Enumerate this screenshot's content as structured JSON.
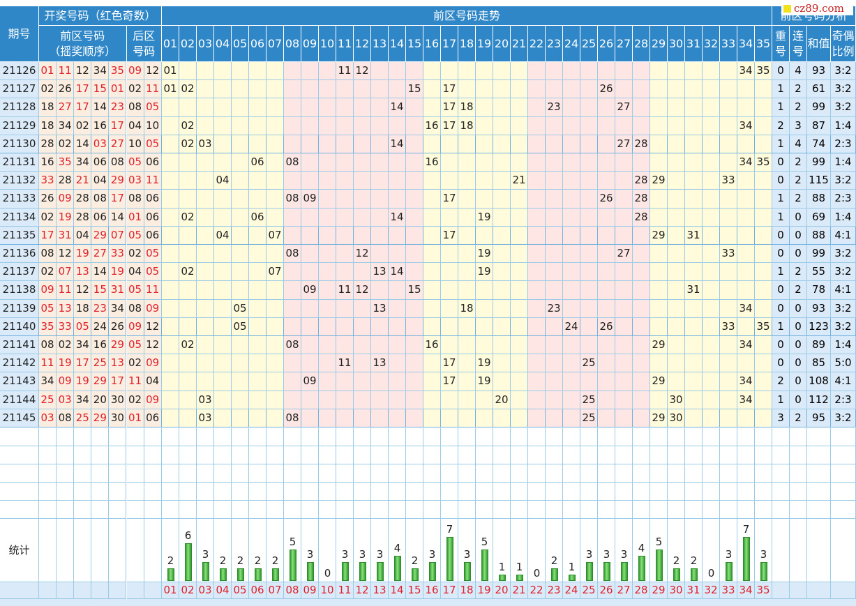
{
  "headers": {
    "period": "期号",
    "draw_group": "开奖号码（红色奇数）",
    "front_line1": "前区号码",
    "front_line2": "（摇奖顺序）",
    "back_line1": "后区",
    "back_line2": "号码",
    "trend": "前区号码走势",
    "analysis": "前区号码分析",
    "repeat_line1": "重",
    "repeat_line2": "号",
    "consec_line1": "连",
    "consec_line2": "号",
    "sum": "和值",
    "ratio_line1": "奇偶",
    "ratio_line2": "比例",
    "stats": "统计"
  },
  "number_labels": [
    "01",
    "02",
    "03",
    "04",
    "05",
    "06",
    "07",
    "08",
    "09",
    "10",
    "11",
    "12",
    "13",
    "14",
    "15",
    "16",
    "17",
    "18",
    "19",
    "20",
    "21",
    "22",
    "23",
    "24",
    "25",
    "26",
    "27",
    "28",
    "29",
    "30",
    "31",
    "32",
    "33",
    "34",
    "35"
  ],
  "watermark": "cz89.com",
  "rows": [
    {
      "period": "21126",
      "front": [
        "01",
        "11",
        "12",
        "34",
        "35"
      ],
      "back": [
        "09",
        "12"
      ],
      "repeat": "0",
      "consec": "4",
      "sum": "93",
      "ratio": "3:2"
    },
    {
      "period": "21127",
      "front": [
        "02",
        "26",
        "17",
        "15",
        "01"
      ],
      "back": [
        "02",
        "11"
      ],
      "repeat": "1",
      "consec": "2",
      "sum": "61",
      "ratio": "3:2"
    },
    {
      "period": "21128",
      "front": [
        "18",
        "27",
        "17",
        "14",
        "23"
      ],
      "back": [
        "08",
        "05"
      ],
      "repeat": "1",
      "consec": "2",
      "sum": "99",
      "ratio": "3:2"
    },
    {
      "period": "21129",
      "front": [
        "18",
        "34",
        "02",
        "16",
        "17"
      ],
      "back": [
        "04",
        "10"
      ],
      "repeat": "2",
      "consec": "3",
      "sum": "87",
      "ratio": "1:4"
    },
    {
      "period": "21130",
      "front": [
        "28",
        "02",
        "14",
        "03",
        "27"
      ],
      "back": [
        "10",
        "05"
      ],
      "repeat": "1",
      "consec": "4",
      "sum": "74",
      "ratio": "2:3"
    },
    {
      "period": "21131",
      "front": [
        "16",
        "35",
        "34",
        "06",
        "08"
      ],
      "back": [
        "05",
        "06"
      ],
      "repeat": "0",
      "consec": "2",
      "sum": "99",
      "ratio": "1:4"
    },
    {
      "period": "21132",
      "front": [
        "33",
        "28",
        "21",
        "04",
        "29"
      ],
      "back": [
        "03",
        "11"
      ],
      "repeat": "0",
      "consec": "2",
      "sum": "115",
      "ratio": "3:2"
    },
    {
      "period": "21133",
      "front": [
        "26",
        "09",
        "28",
        "08",
        "17"
      ],
      "back": [
        "08",
        "06"
      ],
      "repeat": "1",
      "consec": "2",
      "sum": "88",
      "ratio": "2:3"
    },
    {
      "period": "21134",
      "front": [
        "02",
        "19",
        "28",
        "06",
        "14"
      ],
      "back": [
        "01",
        "06"
      ],
      "repeat": "1",
      "consec": "0",
      "sum": "69",
      "ratio": "1:4"
    },
    {
      "period": "21135",
      "front": [
        "17",
        "31",
        "04",
        "29",
        "07"
      ],
      "back": [
        "05",
        "06"
      ],
      "repeat": "0",
      "consec": "0",
      "sum": "88",
      "ratio": "4:1"
    },
    {
      "period": "21136",
      "front": [
        "08",
        "12",
        "19",
        "27",
        "33"
      ],
      "back": [
        "02",
        "05"
      ],
      "repeat": "0",
      "consec": "0",
      "sum": "99",
      "ratio": "3:2"
    },
    {
      "period": "21137",
      "front": [
        "02",
        "07",
        "13",
        "14",
        "19"
      ],
      "back": [
        "04",
        "05"
      ],
      "repeat": "1",
      "consec": "2",
      "sum": "55",
      "ratio": "3:2"
    },
    {
      "period": "21138",
      "front": [
        "09",
        "11",
        "12",
        "15",
        "31"
      ],
      "back": [
        "05",
        "11"
      ],
      "repeat": "0",
      "consec": "2",
      "sum": "78",
      "ratio": "4:1"
    },
    {
      "period": "21139",
      "front": [
        "05",
        "13",
        "18",
        "23",
        "34"
      ],
      "back": [
        "08",
        "09"
      ],
      "repeat": "0",
      "consec": "0",
      "sum": "93",
      "ratio": "3:2"
    },
    {
      "period": "21140",
      "front": [
        "35",
        "33",
        "05",
        "24",
        "26"
      ],
      "back": [
        "09",
        "12"
      ],
      "repeat": "1",
      "consec": "0",
      "sum": "123",
      "ratio": "3:2"
    },
    {
      "period": "21141",
      "front": [
        "08",
        "02",
        "34",
        "16",
        "29"
      ],
      "back": [
        "05",
        "12"
      ],
      "repeat": "0",
      "consec": "0",
      "sum": "89",
      "ratio": "1:4"
    },
    {
      "period": "21142",
      "front": [
        "11",
        "19",
        "17",
        "25",
        "13"
      ],
      "back": [
        "02",
        "09"
      ],
      "repeat": "0",
      "consec": "0",
      "sum": "85",
      "ratio": "5:0"
    },
    {
      "period": "21143",
      "front": [
        "34",
        "09",
        "19",
        "29",
        "17"
      ],
      "back": [
        "11",
        "04"
      ],
      "repeat": "2",
      "consec": "0",
      "sum": "108",
      "ratio": "4:1"
    },
    {
      "period": "21144",
      "front": [
        "25",
        "03",
        "34",
        "20",
        "30"
      ],
      "back": [
        "02",
        "09"
      ],
      "repeat": "1",
      "consec": "0",
      "sum": "112",
      "ratio": "2:3"
    },
    {
      "period": "21145",
      "front": [
        "03",
        "08",
        "25",
        "29",
        "30"
      ],
      "back": [
        "01",
        "06"
      ],
      "repeat": "3",
      "consec": "2",
      "sum": "95",
      "ratio": "3:2"
    }
  ],
  "chart_data": {
    "type": "bar",
    "categories": [
      "01",
      "02",
      "03",
      "04",
      "05",
      "06",
      "07",
      "08",
      "09",
      "10",
      "11",
      "12",
      "13",
      "14",
      "15",
      "16",
      "17",
      "18",
      "19",
      "20",
      "21",
      "22",
      "23",
      "24",
      "25",
      "26",
      "27",
      "28",
      "29",
      "30",
      "31",
      "32",
      "33",
      "34",
      "35"
    ],
    "values": [
      2,
      6,
      3,
      2,
      2,
      2,
      2,
      5,
      3,
      0,
      3,
      3,
      3,
      4,
      2,
      3,
      7,
      3,
      5,
      1,
      1,
      0,
      2,
      1,
      3,
      3,
      3,
      4,
      5,
      2,
      2,
      0,
      3,
      7,
      3
    ],
    "title": "统计",
    "xlabel": "",
    "ylabel": "",
    "ylim": [
      0,
      7
    ]
  },
  "colors": {
    "header": "#2f87c8",
    "period_bg": "#dbeaf8",
    "draw_bg": "#fbeee0",
    "yellow": "#fffbdb",
    "pink": "#fde6e4",
    "odd_red": "#e0202a",
    "bar_green": "#4cb84c",
    "grid_line": "#9ccbe8"
  }
}
